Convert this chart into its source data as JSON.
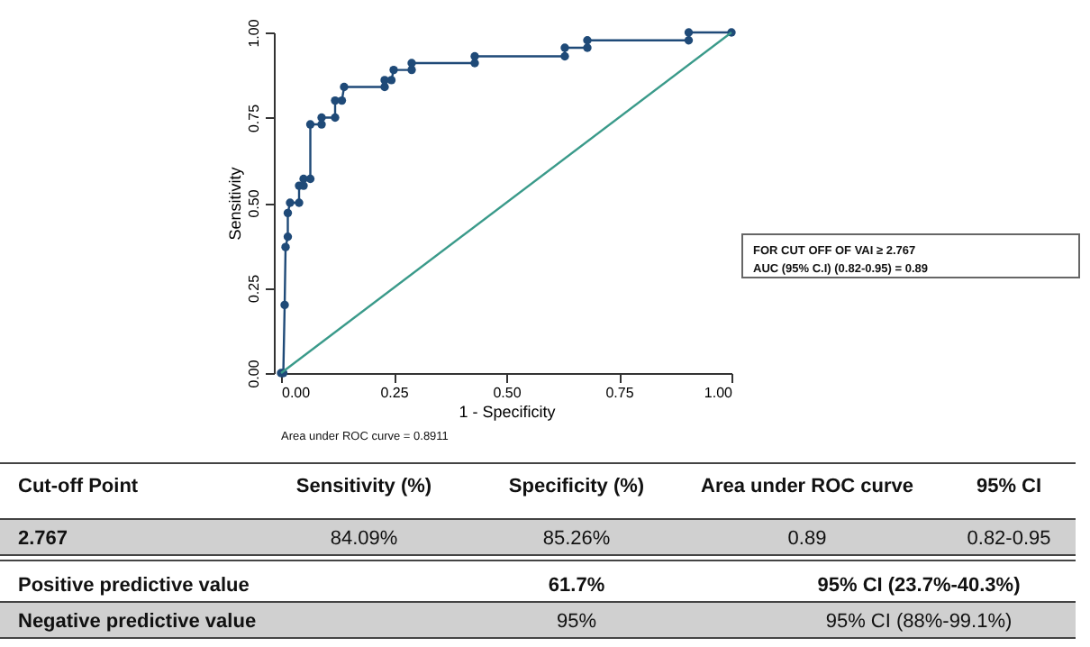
{
  "chart_data": {
    "type": "line",
    "xlabel": "1 - Specificity",
    "ylabel": "Sensitivity",
    "xlim": [
      0,
      1
    ],
    "ylim": [
      0,
      1
    ],
    "xticks": [
      {
        "value": 0,
        "label": "0.00"
      },
      {
        "value": 0.25,
        "label": "0.25"
      },
      {
        "value": 0.5,
        "label": "0.50"
      },
      {
        "value": 0.75,
        "label": "0.75"
      },
      {
        "value": 1,
        "label": "1.00"
      }
    ],
    "yticks": [
      {
        "value": 0,
        "label": "0.00"
      },
      {
        "value": 0.25,
        "label": "0.25"
      },
      {
        "value": 0.5,
        "label": "0.50"
      },
      {
        "value": 0.75,
        "label": "0.75"
      },
      {
        "value": 1,
        "label": "1.00"
      }
    ],
    "grid": false,
    "series": [
      {
        "color": "#1f4a78",
        "marker": "circle",
        "x": [
          0,
          0.005,
          0.008,
          0.01,
          0.015,
          0.015,
          0.02,
          0.04,
          0.04,
          0.05,
          0.05,
          0.065,
          0.065,
          0.09,
          0.09,
          0.12,
          0.12,
          0.135,
          0.14,
          0.23,
          0.23,
          0.245,
          0.25,
          0.29,
          0.29,
          0.43,
          0.43,
          0.63,
          0.63,
          0.68,
          0.68,
          0.905,
          0.905,
          1
        ],
        "values": [
          0,
          0,
          0.2,
          0.37,
          0.4,
          0.47,
          0.5,
          0.5,
          0.55,
          0.55,
          0.57,
          0.57,
          0.73,
          0.73,
          0.75,
          0.75,
          0.8,
          0.8,
          0.84,
          0.84,
          0.86,
          0.86,
          0.89,
          0.89,
          0.91,
          0.91,
          0.93,
          0.93,
          0.955,
          0.955,
          0.977,
          0.977,
          1,
          1
        ]
      },
      {
        "color": "#3a9a8a",
        "x": [
          0,
          1
        ],
        "values": [
          0,
          1
        ]
      }
    ],
    "annotations": [
      "Area under ROC curve = 0.8911",
      "FOR CUT OFF OF VAI ≥ 2.767",
      "AUC (95% C.I) (0.82-0.95) = 0.89",
      "Cut-off Point",
      "Sensitivity (%)",
      "Specificity (%)",
      "Area under ROC curve",
      "95% CI",
      "2.767",
      "84.09%",
      "85.26%",
      "0.89",
      "0.82-0.95",
      "Positive predictive value",
      "61.7%",
      "95% CI (23.7%-40.3%)",
      "Negative predictive value",
      "95%",
      "95% CI (88%-99.1%)"
    ]
  }
}
